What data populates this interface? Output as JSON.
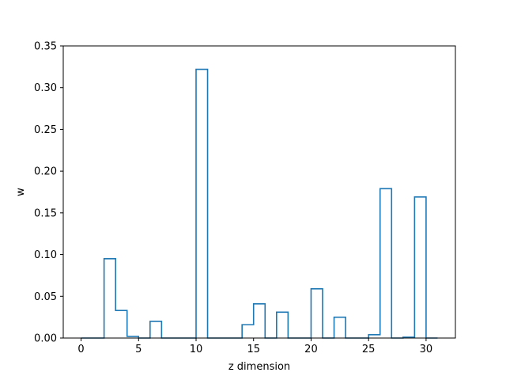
{
  "chart_data": {
    "type": "step",
    "style": "histogram step outline",
    "color": "#1f77b4",
    "xlabel": "z dimension",
    "ylabel": "w",
    "xlim": [
      -1.55,
      32.55
    ],
    "ylim": [
      0,
      0.35
    ],
    "x_ticks": [
      0,
      5,
      10,
      15,
      20,
      25,
      30
    ],
    "y_ticks": [
      0.0,
      0.05,
      0.1,
      0.15,
      0.2,
      0.25,
      0.3,
      0.35
    ],
    "x_tick_labels": [
      "0",
      "5",
      "10",
      "15",
      "20",
      "25",
      "30"
    ],
    "y_tick_labels": [
      "0.00",
      "0.05",
      "0.10",
      "0.15",
      "0.20",
      "0.25",
      "0.30",
      "0.35"
    ],
    "bin_edges": [
      0,
      1,
      2,
      3,
      4,
      5,
      6,
      7,
      8,
      9,
      10,
      11,
      12,
      13,
      14,
      15,
      16,
      17,
      18,
      19,
      20,
      21,
      22,
      23,
      24,
      25,
      26,
      27,
      28,
      29,
      30,
      31
    ],
    "values": [
      0.0,
      0.0,
      0.095,
      0.033,
      0.002,
      0.0,
      0.02,
      0.0,
      0.0,
      0.0,
      0.322,
      0.0,
      0.0,
      0.0,
      0.016,
      0.041,
      0.0,
      0.031,
      0.0,
      0.0,
      0.059,
      0.0,
      0.025,
      0.0,
      0.0,
      0.004,
      0.179,
      0.0,
      0.001,
      0.169,
      0.0
    ],
    "grid": false,
    "legend": "none"
  }
}
